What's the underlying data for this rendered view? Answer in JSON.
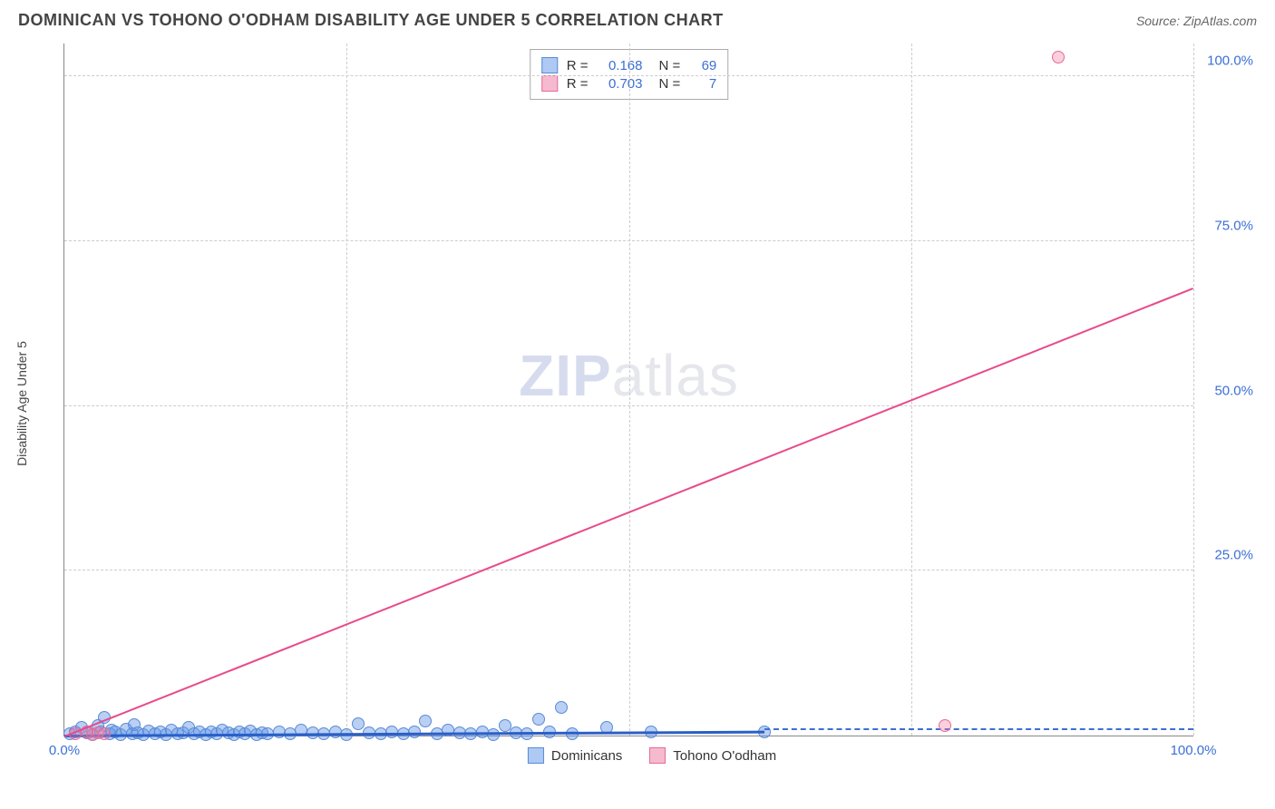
{
  "header": {
    "title": "DOMINICAN VS TOHONO O'ODHAM DISABILITY AGE UNDER 5 CORRELATION CHART",
    "source": "Source: ZipAtlas.com"
  },
  "chart": {
    "type": "scatter",
    "ylabel": "Disability Age Under 5",
    "label_fontsize": 14,
    "title_fontsize": 18,
    "background_color": "#ffffff",
    "grid_color": "#cccccc",
    "axis_color": "#888888",
    "tick_color": "#3b6fd6",
    "xlim": [
      0,
      100
    ],
    "ylim": [
      0,
      105
    ],
    "ytick_labels": [
      "25.0%",
      "50.0%",
      "75.0%",
      "100.0%"
    ],
    "ytick_positions": [
      25,
      50,
      75,
      100
    ],
    "xtick_labels": [
      "0.0%",
      "100.0%"
    ],
    "xtick_positions": [
      0,
      100
    ],
    "xgrid_positions": [
      25,
      50,
      75,
      100
    ],
    "watermark": "ZIPatlas",
    "series": [
      {
        "name": "Dominicans",
        "color_fill": "rgba(100,150,230,0.45)",
        "color_stroke": "#5a8bd6",
        "marker_radius": 7,
        "trend_color": "#2a5fc9",
        "trend_width": 2.5,
        "trend": {
          "x1": 0,
          "y1": 0.2,
          "x2": 62,
          "y2": 0.8
        },
        "extension_dash": {
          "x1": 62,
          "x2": 100
        },
        "points": [
          [
            0.5,
            0.3
          ],
          [
            1,
            0.5
          ],
          [
            1.5,
            1.2
          ],
          [
            2,
            0.4
          ],
          [
            2.5,
            0.2
          ],
          [
            3,
            1.5
          ],
          [
            3.2,
            0.6
          ],
          [
            3.5,
            2.8
          ],
          [
            4,
            0.3
          ],
          [
            4.2,
            0.8
          ],
          [
            4.5,
            0.5
          ],
          [
            5,
            0.2
          ],
          [
            5.5,
            0.9
          ],
          [
            6,
            0.3
          ],
          [
            6.2,
            1.6
          ],
          [
            6.5,
            0.4
          ],
          [
            7,
            0.2
          ],
          [
            7.5,
            0.7
          ],
          [
            8,
            0.3
          ],
          [
            8.5,
            0.5
          ],
          [
            9,
            0.2
          ],
          [
            9.5,
            0.8
          ],
          [
            10,
            0.3
          ],
          [
            10.5,
            0.4
          ],
          [
            11,
            1.2
          ],
          [
            11.5,
            0.3
          ],
          [
            12,
            0.5
          ],
          [
            12.5,
            0.2
          ],
          [
            13,
            0.6
          ],
          [
            13.5,
            0.3
          ],
          [
            14,
            0.8
          ],
          [
            14.5,
            0.4
          ],
          [
            15,
            0.2
          ],
          [
            15.5,
            0.5
          ],
          [
            16,
            0.3
          ],
          [
            16.5,
            0.7
          ],
          [
            17,
            0.2
          ],
          [
            17.5,
            0.4
          ],
          [
            18,
            0.3
          ],
          [
            19,
            0.6
          ],
          [
            20,
            0.3
          ],
          [
            21,
            0.8
          ],
          [
            22,
            0.4
          ],
          [
            23,
            0.3
          ],
          [
            24,
            0.5
          ],
          [
            25,
            0.2
          ],
          [
            26,
            1.8
          ],
          [
            27,
            0.4
          ],
          [
            28,
            0.3
          ],
          [
            29,
            0.6
          ],
          [
            30,
            0.3
          ],
          [
            31,
            0.5
          ],
          [
            32,
            2.2
          ],
          [
            33,
            0.3
          ],
          [
            34,
            0.8
          ],
          [
            35,
            0.4
          ],
          [
            36,
            0.3
          ],
          [
            37,
            0.5
          ],
          [
            38,
            0.2
          ],
          [
            39,
            1.5
          ],
          [
            40,
            0.4
          ],
          [
            41,
            0.3
          ],
          [
            42,
            2.5
          ],
          [
            43,
            0.5
          ],
          [
            44,
            4.2
          ],
          [
            45,
            0.3
          ],
          [
            48,
            1.2
          ],
          [
            52,
            0.5
          ],
          [
            62,
            0.5
          ]
        ]
      },
      {
        "name": "Tohono O'odham",
        "color_fill": "rgba(240,120,160,0.35)",
        "color_stroke": "#e86a9a",
        "marker_radius": 7,
        "trend_color": "#e84a8a",
        "trend_width": 1.8,
        "trend": {
          "x1": 0,
          "y1": 0,
          "x2": 100,
          "y2": 68
        },
        "points": [
          [
            1,
            0.3
          ],
          [
            2,
            0.5
          ],
          [
            2.5,
            0.2
          ],
          [
            3,
            0.4
          ],
          [
            3.5,
            0.3
          ],
          [
            78,
            1.5
          ],
          [
            88,
            103
          ]
        ]
      }
    ]
  },
  "legend_top": {
    "rows": [
      {
        "swatch_fill": "rgba(120,165,235,0.6)",
        "swatch_border": "#5a8bd6",
        "r_label": "R =",
        "r_val": "0.168",
        "n_label": "N =",
        "n_val": "69"
      },
      {
        "swatch_fill": "rgba(240,140,175,0.6)",
        "swatch_border": "#e86a9a",
        "r_label": "R =",
        "r_val": "0.703",
        "n_label": "N =",
        "n_val": "7"
      }
    ]
  },
  "legend_bottom": {
    "items": [
      {
        "swatch_fill": "rgba(120,165,235,0.6)",
        "swatch_border": "#5a8bd6",
        "label": "Dominicans"
      },
      {
        "swatch_fill": "rgba(240,140,175,0.6)",
        "swatch_border": "#e86a9a",
        "label": "Tohono O'odham"
      }
    ]
  }
}
